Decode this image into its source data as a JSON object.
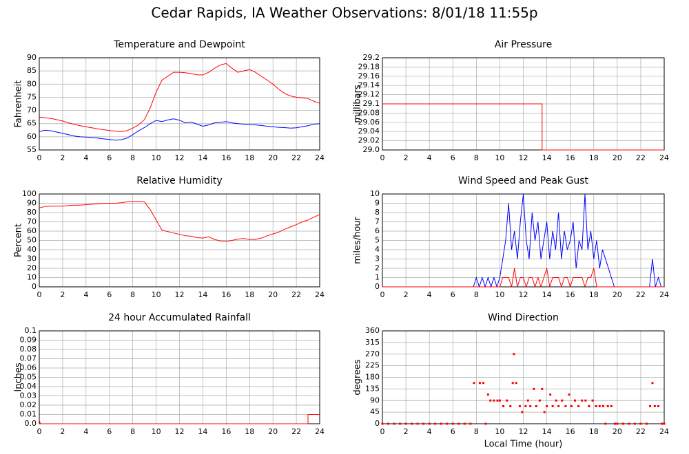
{
  "title": "Cedar Rapids, IA Weather Observations: 8/01/18 11:55p",
  "chart_data": [
    {
      "type": "line",
      "title": "Temperature and Dewpoint",
      "ylabel": "Fahrenheit",
      "xlim": [
        0,
        24
      ],
      "xticks": [
        0,
        2,
        4,
        6,
        8,
        10,
        12,
        14,
        16,
        18,
        20,
        22,
        24
      ],
      "ylim": [
        55,
        90
      ],
      "yticks": [
        55,
        60,
        65,
        70,
        75,
        80,
        85,
        90
      ],
      "grid": true,
      "x": [
        0,
        0.5,
        1,
        1.5,
        2,
        2.5,
        3,
        3.5,
        4,
        4.5,
        5,
        5.5,
        6,
        6.5,
        7,
        7.5,
        8,
        8.5,
        9,
        9.5,
        10,
        10.5,
        11,
        11.5,
        12,
        12.5,
        13,
        13.5,
        14,
        14.5,
        15,
        15.5,
        16,
        16.5,
        17,
        17.5,
        18,
        18.5,
        19,
        19.5,
        20,
        20.5,
        21,
        21.5,
        22,
        22.5,
        23,
        23.5,
        24
      ],
      "series": [
        {
          "color": "#ff0000",
          "values": [
            67.5,
            67.2,
            67,
            66.5,
            66,
            65.3,
            64.7,
            64.2,
            63.8,
            63.4,
            63,
            62.7,
            62.4,
            62.1,
            62,
            62.3,
            63.3,
            64.5,
            66.5,
            71,
            77,
            81.5,
            83,
            84.5,
            84.5,
            84.3,
            84,
            83.5,
            83.5,
            84.5,
            86,
            87.3,
            87.8,
            86,
            84.5,
            85,
            85.5,
            84.5,
            83,
            81.5,
            80,
            78,
            76.5,
            75.5,
            75,
            74.8,
            74.5,
            73.5,
            72.7
          ]
        },
        {
          "color": "#0000ff",
          "values": [
            62,
            62.5,
            62.3,
            61.8,
            61.3,
            60.8,
            60.3,
            60,
            59.9,
            59.7,
            59.5,
            59.2,
            59,
            58.7,
            58.9,
            59.5,
            60.8,
            62.3,
            63.5,
            65,
            66.2,
            65.8,
            66.4,
            66.8,
            66.3,
            65.3,
            65.6,
            64.8,
            64,
            64.5,
            65.3,
            65.5,
            65.8,
            65.3,
            65,
            64.8,
            64.6,
            64.5,
            64.3,
            64,
            63.8,
            63.6,
            63.5,
            63.3,
            63.4,
            63.8,
            64.2,
            64.8,
            65
          ]
        }
      ]
    },
    {
      "type": "line",
      "title": "Air Pressure",
      "ylabel": "millibars",
      "xlim": [
        0,
        24
      ],
      "xticks": [
        0,
        2,
        4,
        6,
        8,
        10,
        12,
        14,
        16,
        18,
        20,
        22,
        24
      ],
      "ylim": [
        29,
        29.2
      ],
      "yticks": [
        {
          "value": 29,
          "label": "29.0"
        },
        29.02,
        29.04,
        29.06,
        29.08,
        29.1,
        29.12,
        29.14,
        29.16,
        29.18,
        29.2
      ],
      "grid": true,
      "x": [
        0,
        13.6,
        13.6,
        24
      ],
      "series": [
        {
          "color": "#ff0000",
          "values": [
            29.1,
            29.1,
            29,
            29
          ]
        }
      ]
    },
    {
      "type": "line",
      "title": "Relative Humidity",
      "ylabel": "Percent",
      "xlim": [
        0,
        24
      ],
      "xticks": [
        0,
        2,
        4,
        6,
        8,
        10,
        12,
        14,
        16,
        18,
        20,
        22,
        24
      ],
      "ylim": [
        0,
        100
      ],
      "yticks": [
        0,
        10,
        20,
        30,
        40,
        50,
        60,
        70,
        80,
        90,
        100
      ],
      "grid": true,
      "x": [
        0,
        0.5,
        1,
        1.5,
        2,
        2.5,
        3,
        3.5,
        4,
        4.5,
        5,
        5.5,
        6,
        6.5,
        7,
        7.5,
        8,
        8.5,
        9,
        9.5,
        10,
        10.5,
        11,
        11.5,
        12,
        12.5,
        13,
        13.5,
        14,
        14.5,
        15,
        15.5,
        16,
        16.5,
        17,
        17.5,
        18,
        18.5,
        19,
        19.5,
        20,
        20.5,
        21,
        21.5,
        22,
        22.5,
        23,
        23.5,
        24
      ],
      "series": [
        {
          "color": "#ff0000",
          "values": [
            85,
            86.5,
            87,
            87,
            87,
            87.5,
            88,
            88,
            88.5,
            89,
            89.5,
            89.8,
            90,
            90,
            90.5,
            91.5,
            92,
            92,
            91.5,
            83,
            72,
            61,
            59.5,
            58,
            56.5,
            55,
            54.5,
            53,
            52.5,
            54,
            51,
            49.5,
            49,
            50,
            51.5,
            52,
            51,
            51,
            52.5,
            55,
            57,
            59,
            62,
            64.5,
            67,
            70,
            72,
            75,
            78
          ]
        }
      ]
    },
    {
      "type": "line",
      "title": "Wind Speed and Peak Gust",
      "ylabel": "miles/hour",
      "xlim": [
        0,
        24
      ],
      "xticks": [
        0,
        2,
        4,
        6,
        8,
        10,
        12,
        14,
        16,
        18,
        20,
        22,
        24
      ],
      "ylim": [
        0,
        10
      ],
      "yticks": [
        0,
        1,
        2,
        3,
        4,
        5,
        6,
        7,
        8,
        9,
        10
      ],
      "grid": true,
      "x": [
        0,
        7.75,
        8,
        8.25,
        8.5,
        8.75,
        9,
        9.25,
        9.5,
        9.75,
        10,
        10.25,
        10.5,
        10.75,
        11,
        11.25,
        11.5,
        11.75,
        12,
        12.25,
        12.5,
        12.75,
        13,
        13.25,
        13.5,
        13.75,
        14,
        14.25,
        14.5,
        14.75,
        15,
        15.25,
        15.5,
        15.75,
        16,
        16.25,
        16.5,
        16.75,
        17,
        17.25,
        17.5,
        17.75,
        18,
        18.25,
        18.5,
        18.75,
        19,
        19.25,
        19.5,
        19.75,
        20,
        22.75,
        23,
        23.25,
        23.5,
        23.75,
        24
      ],
      "series": [
        {
          "color": "#0000ff",
          "values": [
            0,
            0,
            1,
            0,
            1,
            0,
            1,
            0,
            1,
            0,
            1,
            3,
            5,
            9,
            4,
            6,
            3,
            7,
            10,
            5,
            3,
            8,
            5,
            7,
            3,
            5,
            7,
            3,
            6,
            4,
            8,
            3,
            6,
            4,
            5,
            7,
            2,
            5,
            4,
            10,
            4,
            6,
            3,
            5,
            2,
            4,
            3,
            2,
            1,
            0,
            0,
            0,
            3,
            0,
            1,
            0,
            0
          ]
        },
        {
          "color": "#ff0000",
          "values": [
            0,
            0,
            0,
            0,
            0,
            0,
            0,
            0,
            0,
            0,
            0,
            1,
            1,
            1,
            0,
            2,
            0,
            1,
            1,
            0,
            1,
            1,
            0,
            1,
            0,
            1,
            2,
            0,
            1,
            1,
            1,
            0,
            1,
            1,
            0,
            1,
            1,
            1,
            1,
            0,
            1,
            1,
            2,
            0,
            0,
            0,
            0,
            0,
            0,
            0,
            0,
            0,
            0,
            0,
            0,
            0,
            0
          ]
        }
      ]
    },
    {
      "type": "line",
      "title": "24 hour Accumulated Rainfall",
      "ylabel": "Inches",
      "xlim": [
        0,
        24
      ],
      "xticks": [
        0,
        2,
        4,
        6,
        8,
        10,
        12,
        14,
        16,
        18,
        20,
        22,
        24
      ],
      "ylim": [
        0,
        0.1
      ],
      "yticks": [
        {
          "value": 0,
          "label": "0.0"
        },
        0.01,
        0.02,
        0.03,
        0.04,
        0.05,
        0.06,
        0.07,
        0.08,
        0.09,
        0.1
      ],
      "grid": true,
      "x": [
        0,
        0.1,
        23,
        23,
        24
      ],
      "series": [
        {
          "color": "#ff0000",
          "values": [
            0.004,
            0,
            0,
            0.01,
            0.01
          ]
        }
      ]
    },
    {
      "type": "scatter",
      "title": "Wind Direction",
      "ylabel": "degrees",
      "xlabel": "Local Time (hour)",
      "xlim": [
        0,
        24
      ],
      "xticks": [
        0,
        2,
        4,
        6,
        8,
        10,
        12,
        14,
        16,
        18,
        20,
        22,
        24
      ],
      "ylim": [
        0,
        360
      ],
      "yticks": [
        0,
        45,
        90,
        135,
        180,
        225,
        270,
        315,
        360
      ],
      "grid": true,
      "x": [
        0,
        0.5,
        1,
        1.5,
        2,
        2.5,
        3,
        3.5,
        4,
        4.5,
        5,
        5.5,
        6,
        6.5,
        7,
        7.5,
        7.8,
        8.3,
        8.6,
        8.8,
        9.0,
        9.2,
        9.5,
        9.8,
        10.0,
        10.3,
        10.6,
        10.9,
        11.1,
        11.2,
        11.4,
        11.7,
        11.9,
        12.2,
        12.4,
        12.6,
        12.9,
        13.1,
        13.4,
        13.6,
        13.8,
        14.0,
        14.3,
        14.5,
        14.8,
        15.0,
        15.3,
        15.6,
        15.9,
        16.1,
        16.4,
        16.7,
        17.0,
        17.3,
        17.6,
        17.9,
        18.2,
        18.5,
        18.8,
        19.0,
        19.2,
        19.5,
        19.8,
        20,
        20.5,
        21,
        21.5,
        22,
        22.5,
        22.8,
        23.0,
        23.2,
        23.5,
        23.8,
        24
      ],
      "series": [
        {
          "color": "#ff0000",
          "values": [
            0,
            0,
            0,
            0,
            0,
            0,
            0,
            0,
            0,
            0,
            0,
            0,
            0,
            0,
            0,
            0,
            158,
            158,
            158,
            0,
            113,
            90,
            90,
            90,
            90,
            68,
            90,
            68,
            158,
            270,
            158,
            68,
            45,
            68,
            90,
            68,
            135,
            68,
            90,
            135,
            45,
            68,
            113,
            68,
            90,
            68,
            90,
            68,
            113,
            68,
            90,
            68,
            90,
            90,
            68,
            90,
            68,
            68,
            68,
            0,
            68,
            68,
            0,
            0,
            0,
            0,
            0,
            0,
            0,
            68,
            158,
            68,
            68,
            0,
            0
          ]
        }
      ]
    }
  ]
}
